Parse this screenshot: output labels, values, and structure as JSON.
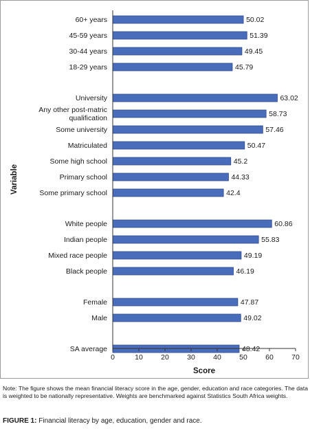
{
  "chart_data": {
    "type": "bar",
    "orientation": "horizontal",
    "xlabel": "Score",
    "ylabel": "Variable",
    "xlim": [
      0,
      70
    ],
    "xticks": [
      0,
      10,
      20,
      30,
      40,
      50,
      60,
      70
    ],
    "bar_color": "#4a6dbb",
    "bar_edge_color": "#2f4a8a",
    "groups": [
      {
        "categories": [
          "60+ years",
          "45-59 years",
          "30-44 years",
          "18-29 years"
        ],
        "values": [
          50.02,
          51.39,
          49.45,
          45.79
        ]
      },
      {
        "categories": [
          "University",
          [
            "Any other post-matric",
            "qualification"
          ],
          "Some university",
          "Matriculated",
          "Some high school",
          "Primary school",
          "Some primary school"
        ],
        "values": [
          63.02,
          58.73,
          57.46,
          50.47,
          45.2,
          44.33,
          42.4
        ]
      },
      {
        "categories": [
          "White people",
          "Indian people",
          "Mixed race people",
          "Black people"
        ],
        "values": [
          60.86,
          55.83,
          49.19,
          46.19
        ]
      },
      {
        "categories": [
          "Female",
          "Male"
        ],
        "values": [
          47.87,
          49.02
        ]
      },
      {
        "categories": [
          "SA average"
        ],
        "values": [
          48.42
        ]
      }
    ]
  },
  "note": "Note: The figure shows the mean financial literacy score in the age, gender, education and race categories. The data is weighted to be nationally representative. Weights are benchmarked against Statistics South Africa weights.",
  "caption": {
    "label": "FIGURE 1:",
    "text": "Financial literacy by age, education, gender and race."
  }
}
